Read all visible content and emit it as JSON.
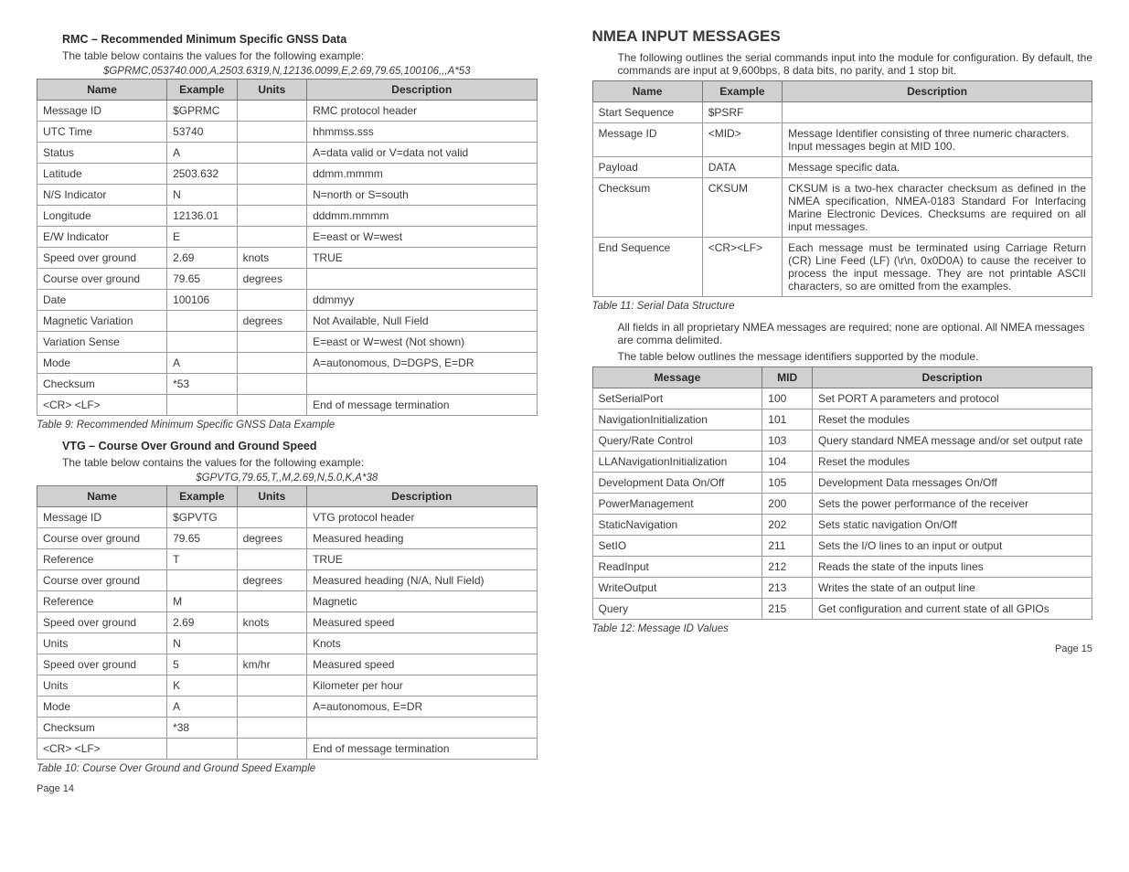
{
  "left": {
    "rmc": {
      "heading": "RMC – Recommended Minimum Specific GNSS Data",
      "intro": "The table below contains the values for the following example:",
      "example": "$GPRMC,053740.000,A,2503.6319,N,12136.0099,E,2.69,79.65,100106,,,A*53",
      "headers": [
        "Name",
        "Example",
        "Units",
        "Description"
      ],
      "col_widths": [
        "26%",
        "14%",
        "14%",
        "46%"
      ],
      "rows": [
        [
          "Message ID",
          "$GPRMC",
          "",
          "RMC protocol header"
        ],
        [
          "UTC Time",
          "53740",
          "",
          "hhmmss.sss"
        ],
        [
          "Status",
          "A",
          "",
          "A=data valid or V=data not valid"
        ],
        [
          "Latitude",
          "2503.632",
          "",
          "ddmm.mmmm"
        ],
        [
          "N/S Indicator",
          "N",
          "",
          "N=north or S=south"
        ],
        [
          "Longitude",
          "12136.01",
          "",
          "dddmm.mmmm"
        ],
        [
          "E/W Indicator",
          "E",
          "",
          "E=east or W=west"
        ],
        [
          "Speed over ground",
          "2.69",
          "knots",
          "TRUE"
        ],
        [
          "Course over ground",
          "79.65",
          "degrees",
          ""
        ],
        [
          "Date",
          "100106",
          "",
          "ddmmyy"
        ],
        [
          "Magnetic Variation",
          "",
          "degrees",
          "Not Available, Null Field"
        ],
        [
          "Variation Sense",
          "",
          "",
          "E=east or W=west (Not shown)"
        ],
        [
          "Mode",
          "A",
          "",
          "A=autonomous, D=DGPS, E=DR"
        ],
        [
          "Checksum",
          "*53",
          "",
          ""
        ],
        [
          "<CR> <LF>",
          "",
          "",
          "End of message termination"
        ]
      ],
      "caption": "Table 9: Recommended Minimum Specific GNSS Data Example"
    },
    "vtg": {
      "heading": "VTG – Course Over Ground and Ground Speed",
      "intro": "The table below contains the values for the following example:",
      "example": "$GPVTG,79.65,T,,M,2.69,N,5.0,K,A*38",
      "headers": [
        "Name",
        "Example",
        "Units",
        "Description"
      ],
      "col_widths": [
        "26%",
        "14%",
        "14%",
        "46%"
      ],
      "rows": [
        [
          "Message ID",
          "$GPVTG",
          "",
          "VTG protocol header"
        ],
        [
          "Course over ground",
          "79.65",
          "degrees",
          "Measured heading"
        ],
        [
          "Reference",
          "T",
          "",
          "TRUE"
        ],
        [
          "Course over ground",
          "",
          "degrees",
          "Measured heading (N/A, Null Field)"
        ],
        [
          "Reference",
          "M",
          "",
          "Magnetic"
        ],
        [
          "Speed over ground",
          "2.69",
          "knots",
          "Measured speed"
        ],
        [
          "Units",
          "N",
          "",
          "Knots"
        ],
        [
          "Speed over ground",
          "5",
          "km/hr",
          "Measured speed"
        ],
        [
          "Units",
          "K",
          "",
          "Kilometer per hour"
        ],
        [
          "Mode",
          "A",
          "",
          "A=autonomous, E=DR"
        ],
        [
          "Checksum",
          "*38",
          "",
          ""
        ],
        [
          "<CR> <LF>",
          "",
          "",
          "End of message termination"
        ]
      ],
      "caption": "Table 10: Course Over Ground and Ground Speed Example"
    },
    "page": "Page 14"
  },
  "right": {
    "title": "NMEA INPUT MESSAGES",
    "intro": "The following outlines the serial commands input into the module for configuration. By default, the commands are input at 9,600bps, 8 data bits, no parity, and 1 stop bit.",
    "t11": {
      "headers": [
        "Name",
        "Example",
        "Description"
      ],
      "col_widths": [
        "22%",
        "16%",
        "62%"
      ],
      "rows": [
        [
          "Start Sequence",
          "$PSRF",
          "",
          false
        ],
        [
          "Message ID",
          "<MID>",
          "Message Identifier consisting of three numeric characters. Input messages begin at MID 100.",
          false
        ],
        [
          "Payload",
          "DATA",
          "Message specific data.",
          false
        ],
        [
          "Checksum",
          "CKSUM",
          "CKSUM is a two-hex character checksum as defined in the NMEA specification, NMEA-0183 Standard For Interfacing Marine Electronic Devices. Checksums are required on all input messages.",
          true
        ],
        [
          "End Sequence",
          "<CR><LF>",
          "Each message must be terminated using Carriage Return (CR) Line Feed (LF) (\\r\\n, 0x0D0A) to cause the receiver to process the input message. They are not printable ASCII characters, so are omitted from the examples.",
          true
        ]
      ],
      "caption": "Table 11: Serial Data Structure"
    },
    "note1": "All fields in all proprietary NMEA messages are required; none are optional. All NMEA messages are comma delimited.",
    "note2": "The table below outlines the message identifiers supported by the module.",
    "t12": {
      "headers": [
        "Message",
        "MID",
        "Description"
      ],
      "col_widths": [
        "34%",
        "10%",
        "56%"
      ],
      "rows": [
        [
          "SetSerialPort",
          "100",
          "Set PORT A parameters and protocol"
        ],
        [
          "NavigationInitialization",
          "101",
          "Reset the modules"
        ],
        [
          "Query/Rate Control",
          "103",
          "Query standard NMEA message and/or set output rate"
        ],
        [
          "LLANavigationInitialization",
          "104",
          "Reset the modules"
        ],
        [
          "Development Data On/Off",
          "105",
          "Development Data messages On/Off"
        ],
        [
          "PowerManagement",
          "200",
          "Sets the power performance of the receiver"
        ],
        [
          "StaticNavigation",
          "202",
          "Sets static navigation On/Off"
        ],
        [
          "SetIO",
          "211",
          "Sets the I/O lines to an input or output"
        ],
        [
          "ReadInput",
          "212",
          "Reads the state of the inputs lines"
        ],
        [
          "WriteOutput",
          "213",
          "Writes the state of an output line"
        ],
        [
          "Query",
          "215",
          "Get configuration and current state of all GPIOs"
        ]
      ],
      "caption": "Table 12: Message ID Values"
    },
    "page": "Page 15"
  }
}
